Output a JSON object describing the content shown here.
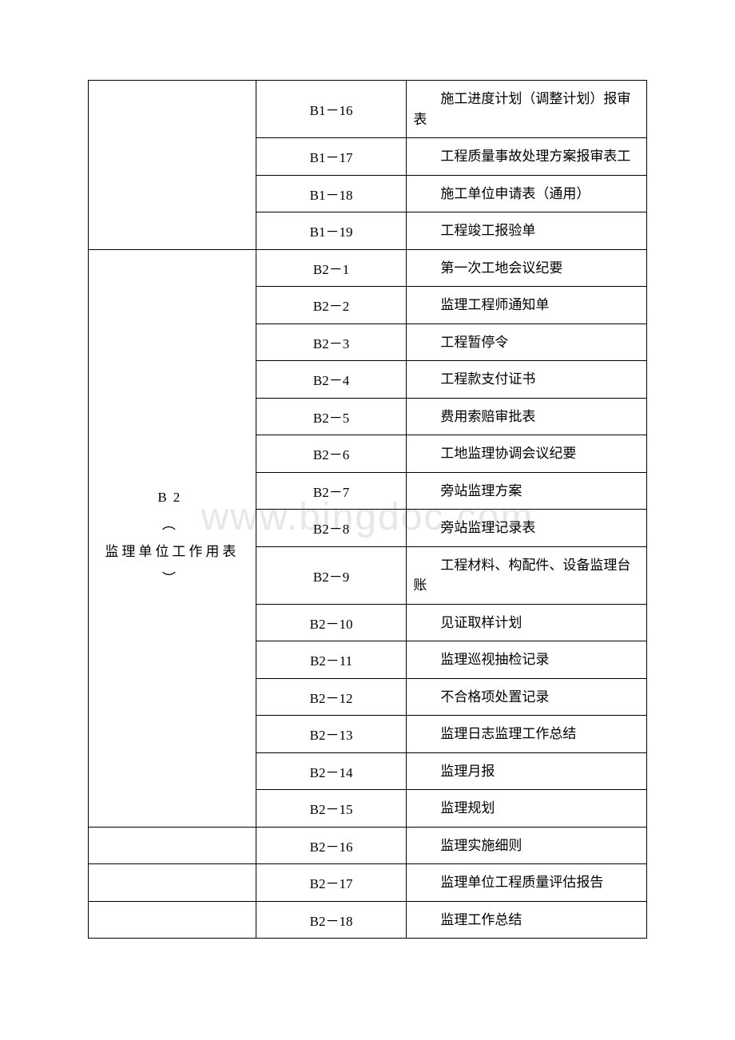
{
  "watermark": "www.bingdoc.com",
  "table": {
    "columns": {
      "category_width": "30%",
      "code_width": "27%",
      "desc_width": "43%"
    },
    "border_color": "#000000",
    "font_size": 17,
    "text_color": "#000000",
    "background_color": "#ffffff",
    "rows": [
      {
        "category": "",
        "code": "B1－16",
        "desc": "施工进度计划（调整计划）报审表",
        "rowspan": 0
      },
      {
        "category": "",
        "code": "B1－17",
        "desc": "工程质量事故处理方案报审表工",
        "rowspan": 0
      },
      {
        "category": "",
        "code": "B1－18",
        "desc": "施工单位申请表（通用）",
        "rowspan": 0
      },
      {
        "category": "",
        "code": "B1－19",
        "desc": "工程竣工报验单",
        "rowspan": 0
      },
      {
        "category": "B2\n︵\n监理单位工作用表\n︶",
        "code": "B2－1",
        "desc": "第一次工地会议纪要",
        "rowspan": 15
      },
      {
        "category": "",
        "code": "B2－2",
        "desc": "监理工程师通知单",
        "rowspan": 0
      },
      {
        "category": "",
        "code": "B2－3",
        "desc": "工程暂停令",
        "rowspan": 0
      },
      {
        "category": "",
        "code": "B2－4",
        "desc": "工程款支付证书",
        "rowspan": 0
      },
      {
        "category": "",
        "code": "B2－5",
        "desc": "费用索赔审批表",
        "rowspan": 0
      },
      {
        "category": "",
        "code": "B2－6",
        "desc": "工地监理协调会议纪要",
        "rowspan": 0
      },
      {
        "category": "",
        "code": "B2－7",
        "desc": "旁站监理方案",
        "rowspan": 0
      },
      {
        "category": "",
        "code": "B2－8",
        "desc": "旁站监理记录表",
        "rowspan": 0
      },
      {
        "category": "",
        "code": "B2－9",
        "desc": "工程材料、构配件、设备监理台账",
        "rowspan": 0
      },
      {
        "category": "",
        "code": "B2－10",
        "desc": "见证取样计划",
        "rowspan": 0
      },
      {
        "category": "",
        "code": "B2－11",
        "desc": "监理巡视抽检记录",
        "rowspan": 0
      },
      {
        "category": "",
        "code": "B2－12",
        "desc": "不合格项处置记录",
        "rowspan": 0
      },
      {
        "category": "",
        "code": "B2－13",
        "desc": "监理日志监理工作总结",
        "rowspan": 0
      },
      {
        "category": "",
        "code": "B2－14",
        "desc": "监理月报",
        "rowspan": 0
      },
      {
        "category": "",
        "code": "B2－15",
        "desc": "监理规划",
        "rowspan": 0
      },
      {
        "category": "",
        "code": "B2－16",
        "desc": "监理实施细则",
        "rowspan": 1
      },
      {
        "category": "",
        "code": "B2－17",
        "desc": "监理单位工程质量评估报告",
        "rowspan": 1
      },
      {
        "category": "",
        "code": "B2－18",
        "desc": "监理工作总结",
        "rowspan": 1
      }
    ],
    "category_b2": {
      "line1": "B2",
      "line2": "︵",
      "line3": "监理单位工作用表",
      "line4": "︶"
    }
  }
}
